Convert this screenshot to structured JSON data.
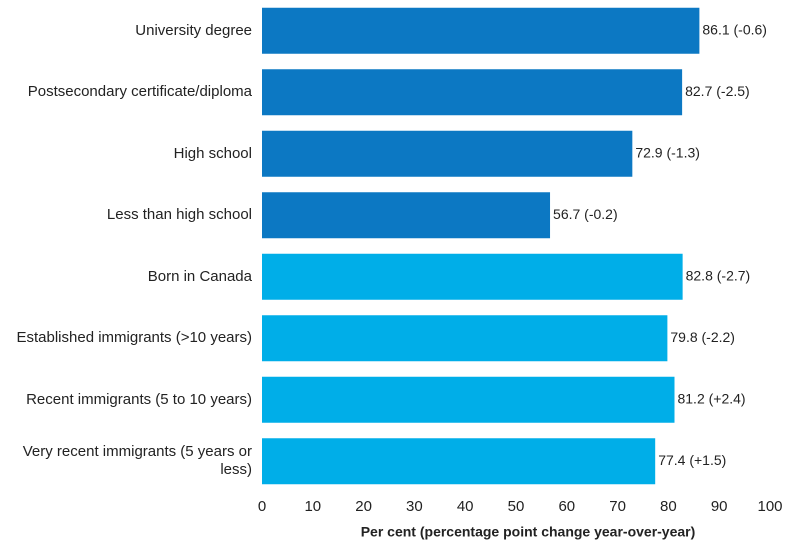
{
  "chart_data": {
    "type": "barh",
    "xlabel": "Per cent (percentage point change year-over-year)",
    "categories": [
      "University degree",
      "Postsecondary certificate/diploma",
      "High school",
      "Less than high school",
      "Born in Canada",
      "Established immigrants (>10 years)",
      "Recent immigrants (5 to 10 years)",
      "Very recent immigrants (5 years or less)"
    ],
    "values": [
      86.1,
      82.7,
      72.9,
      56.7,
      82.8,
      79.8,
      81.2,
      77.4
    ],
    "value_labels": [
      "86.1 (-0.6)",
      "82.7 (-2.5)",
      "72.9 (-1.3)",
      "56.7 (-0.2)",
      "82.8 (-2.7)",
      "79.8 (-2.2)",
      "81.2 (+2.4)",
      "77.4 (+1.5)"
    ],
    "colors": [
      "#0c78c3",
      "#0c78c3",
      "#0c78c3",
      "#0c78c3",
      "#00aee8",
      "#00aee8",
      "#00aee8",
      "#00aee8"
    ],
    "xlim": [
      0,
      100
    ],
    "xticks": [
      0,
      10,
      20,
      30,
      40,
      50,
      60,
      70,
      80,
      90,
      100
    ]
  }
}
